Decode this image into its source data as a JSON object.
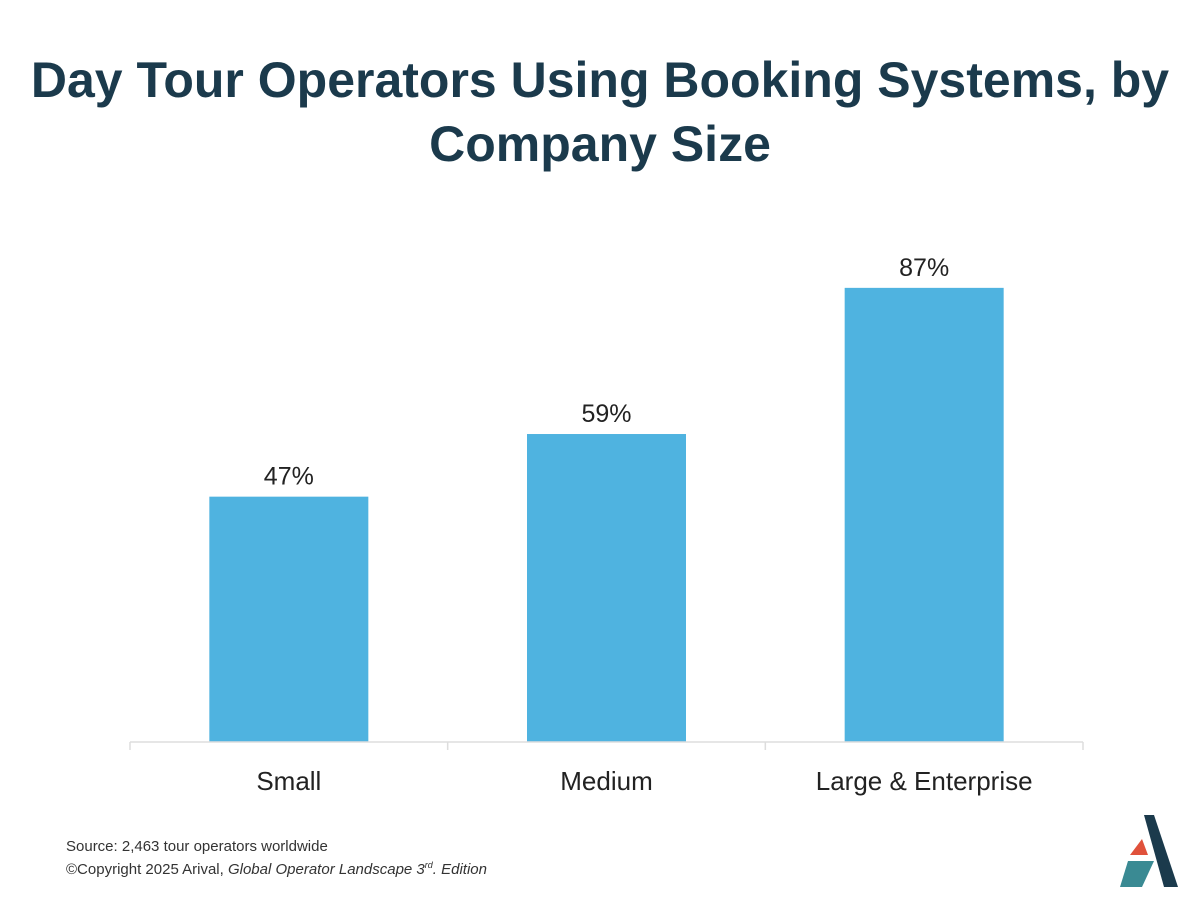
{
  "chart_data": {
    "type": "bar",
    "title": "Day Tour Operators Using Booking Systems, by Company Size",
    "categories": [
      "Small",
      "Medium",
      "Large & Enterprise"
    ],
    "values": [
      47,
      59,
      87
    ],
    "data_labels": [
      "47%",
      "59%",
      "87%"
    ],
    "ylim": [
      0,
      100
    ],
    "xlabel": "",
    "ylabel": "",
    "grid": false,
    "bar_color": "#4fb3e0",
    "axis_color": "#dddddd"
  },
  "footer": {
    "source": "Source: 2,463 tour operators worldwide",
    "copyright_prefix": "©Copyright 2025 Arival, ",
    "publication": "Global Operator Landscape 3",
    "superscript": "rd",
    "edition": ". Edition"
  },
  "logo": {
    "name": "Arival",
    "colors": [
      "#1b3a4c",
      "#e0513b",
      "#3a8a93"
    ]
  }
}
